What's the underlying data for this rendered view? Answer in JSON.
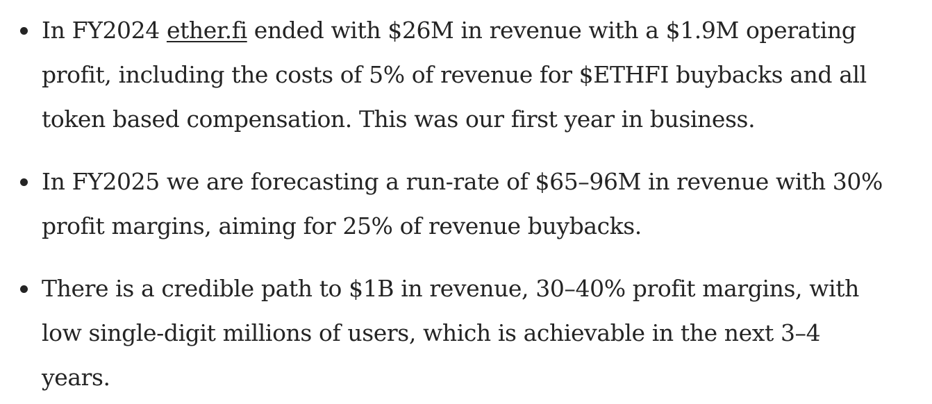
{
  "bullets": [
    {
      "lines": [
        {
          "before": "In FY2024 ",
          "link": "ether.fi",
          "after": " ended with $26M in revenue with a $1.9M operating"
        },
        {
          "text": "profit, including the costs of 5% of revenue for $ETHFI buybacks and all"
        },
        {
          "text": "token based compensation. This was our first year in business."
        }
      ]
    },
    {
      "lines": [
        {
          "text": "In FY2025 we are forecasting a run-rate of $65–96M in revenue with 30%"
        },
        {
          "text": "profit margins, aiming for 25% of revenue buybacks."
        }
      ]
    },
    {
      "lines": [
        {
          "text": "There is a credible path to $1B in revenue, 30–40% profit margins, with"
        },
        {
          "text": "low single-digit millions of users, which is achievable in the next 3–4"
        },
        {
          "text": "years."
        }
      ]
    }
  ]
}
